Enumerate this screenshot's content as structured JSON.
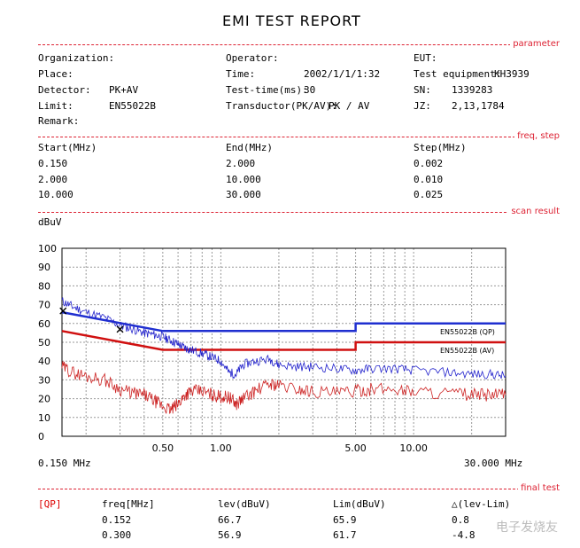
{
  "title": "EMI TEST REPORT",
  "sections": {
    "parameter": "parameter",
    "freq_step": "freq, step",
    "scan_result": "scan result",
    "final_test": "final test"
  },
  "params": {
    "organization_label": "Organization:",
    "organization_value": "",
    "operator_label": "Operator:",
    "operator_value": "",
    "eut_label": "EUT:",
    "eut_value": "",
    "place_label": "Place:",
    "place_value": "",
    "time_label": "Time:",
    "time_value": "2002/1/1/1:32",
    "equipment_label": "Test equipment:",
    "equipment_value": "KH3939",
    "detector_label": "Detector:",
    "detector_value": "PK+AV",
    "testtime_label": "Test-time(ms):",
    "testtime_value": "30",
    "sn_label": "SN:",
    "sn_value": "1339283",
    "limit_label": "Limit:",
    "limit_value": "EN55022B",
    "transductor_label": "Transductor(PK/AV):",
    "transductor_value": "PK  /  AV",
    "jz_label": "JZ:",
    "jz_value": "2,13,1784",
    "remark_label": "Remark:"
  },
  "freq_table": {
    "headers": [
      "Start(MHz)",
      "End(MHz)",
      "Step(MHz)"
    ],
    "rows": [
      [
        "0.150",
        "2.000",
        "0.002"
      ],
      [
        "2.000",
        "10.000",
        "0.010"
      ],
      [
        "10.000",
        "30.000",
        "0.025"
      ]
    ]
  },
  "chart_data": {
    "type": "line",
    "ylabel": "dBuV",
    "x_scale": "log",
    "xlim": [
      0.15,
      30
    ],
    "ylim": [
      0,
      100
    ],
    "yticks": [
      0,
      10,
      20,
      30,
      40,
      50,
      60,
      70,
      80,
      90,
      100
    ],
    "xtick_labels": [
      {
        "x": 0.5,
        "label": "0.50"
      },
      {
        "x": 1,
        "label": "1.00"
      },
      {
        "x": 5,
        "label": "5.00"
      },
      {
        "x": 10,
        "label": "10.00"
      }
    ],
    "x_start_label": "0.150 MHz",
    "x_end_label": "30.000 MHz",
    "grid": true,
    "colors": {
      "qp_limit": "#1f2fd0",
      "av_limit": "#d01010",
      "pk_trace": "#2222cc",
      "av_trace": "#cc2222"
    },
    "series": [
      {
        "name": "EN55022B (QP)",
        "kind": "limit",
        "x": [
          0.15,
          0.5,
          5,
          5,
          30
        ],
        "y": [
          66,
          56,
          56,
          60,
          60
        ]
      },
      {
        "name": "EN55022B (AV)",
        "kind": "limit",
        "x": [
          0.15,
          0.5,
          5,
          5,
          30
        ],
        "y": [
          56,
          46,
          46,
          50,
          50
        ]
      },
      {
        "kind": "trace-pk",
        "x": [
          0.15,
          0.17,
          0.2,
          0.25,
          0.3,
          0.35,
          0.4,
          0.45,
          0.5,
          0.55,
          0.6,
          0.65,
          0.7,
          0.8,
          0.9,
          1.0,
          1.1,
          1.2,
          1.3,
          1.5,
          1.8,
          2.0,
          2.5,
          3,
          4,
          5,
          6,
          8,
          10,
          15,
          20,
          25,
          30
        ],
        "y": [
          72,
          69,
          66,
          63,
          59,
          57,
          55,
          54,
          53,
          51,
          49,
          47,
          46,
          44,
          42,
          40,
          34,
          33,
          38,
          40,
          41,
          38,
          37,
          37,
          36,
          35,
          36,
          36,
          35,
          34,
          33,
          33,
          32
        ]
      },
      {
        "kind": "trace-av",
        "x": [
          0.15,
          0.17,
          0.2,
          0.25,
          0.3,
          0.35,
          0.4,
          0.45,
          0.5,
          0.55,
          0.6,
          0.65,
          0.7,
          0.8,
          0.9,
          1.0,
          1.1,
          1.2,
          1.3,
          1.5,
          1.8,
          2.0,
          2.5,
          3,
          4,
          5,
          6,
          8,
          10,
          15,
          20,
          25,
          30
        ],
        "y": [
          37,
          34,
          32,
          30,
          25,
          23,
          22,
          19,
          16,
          14,
          17,
          22,
          24,
          24,
          22,
          21,
          21,
          17,
          20,
          24,
          28,
          27,
          25,
          24,
          23,
          24,
          25,
          25,
          24,
          23,
          22,
          22,
          22
        ]
      }
    ],
    "markers": [
      {
        "x": 0.152,
        "y": 66.7
      },
      {
        "x": 0.3,
        "y": 56.9
      }
    ]
  },
  "final_test": {
    "mode": "[QP]",
    "headers": [
      "freq[MHz]",
      "lev(dBuV)",
      "Lim(dBuV)",
      "△(lev-Lim)"
    ],
    "rows": [
      [
        "0.152",
        "66.7",
        "65.9",
        "0.8"
      ],
      [
        "0.300",
        "56.9",
        "61.7",
        "-4.8"
      ]
    ]
  },
  "watermark": "电子发烧友"
}
